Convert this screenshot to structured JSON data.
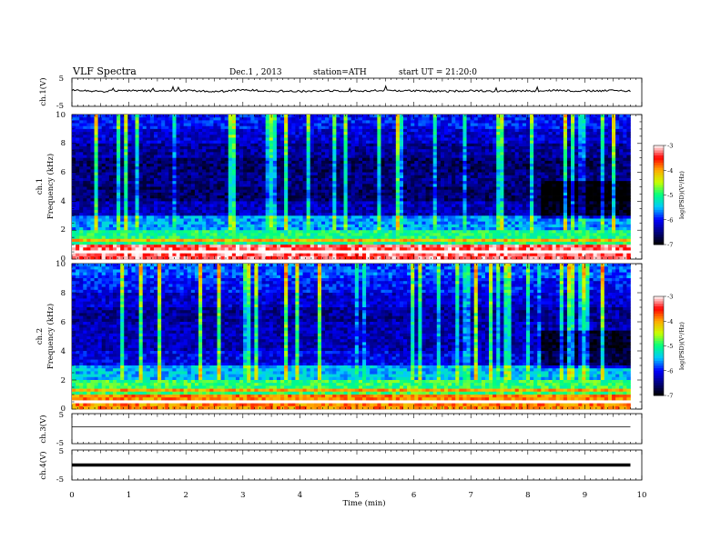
{
  "header": {
    "title": "VLF Spectra",
    "date": "Dec.1 , 2013",
    "station": "station=ATH",
    "start": "start UT = 21:20:0"
  },
  "colors": {
    "spectrogram_scale": [
      "#000000",
      "#000080",
      "#0000ff",
      "#00c8ff",
      "#00ff80",
      "#c8ff00",
      "#ffaa00",
      "#ff0000",
      "#ffffff"
    ]
  },
  "chart_data": [
    {
      "type": "line",
      "panel": "ch1-voltage",
      "ylabel": "ch.1(V)",
      "ylim": [
        -5,
        5
      ],
      "ytick_labels": [
        "5",
        "-5"
      ],
      "x": [
        0,
        0.5,
        1,
        1.5,
        2,
        2.5,
        3,
        3.5,
        4,
        4.5,
        5,
        5.5,
        6,
        6.5,
        7,
        7.5,
        8,
        8.5,
        9,
        9.5,
        9.8
      ],
      "values": [
        0.9,
        0.3,
        0.6,
        0.4,
        0.7,
        0.2,
        0.8,
        0.5,
        0.3,
        0.6,
        0.4,
        0.7,
        0.5,
        0.3,
        0.6,
        0.4,
        0.5,
        0.7,
        0.4,
        0.6,
        0.5
      ]
    },
    {
      "type": "heatmap",
      "panel": "ch1-spectrogram",
      "ylabel_channel": "ch.1",
      "ylabel": "Frequency (kHz)",
      "ylim": [
        0,
        10
      ],
      "ytick_labels": [
        "10",
        "8",
        "6",
        "4",
        "2",
        "0"
      ],
      "colorbar": {
        "label": "log(PSD)(V²/Hz)",
        "ticks": [
          "-3",
          "-4",
          "-5",
          "-6",
          "-7"
        ],
        "range": [
          -7,
          -3
        ]
      },
      "frequency_bands_khz": [
        0,
        1,
        2,
        3,
        4,
        5,
        6,
        7,
        8,
        9,
        10
      ],
      "band_mean_logpsd": [
        -3.3,
        -5.0,
        -5.6,
        -6.3,
        -6.6,
        -6.5,
        -6.6,
        -6.4,
        -6.2,
        -6.0
      ]
    },
    {
      "type": "heatmap",
      "panel": "ch2-spectrogram",
      "ylabel_channel": "ch.2",
      "ylabel": "Frequency (kHz)",
      "ylim": [
        0,
        10
      ],
      "ytick_labels": [
        "10",
        "8",
        "6",
        "4",
        "2",
        "0"
      ],
      "colorbar": {
        "label": "log(PSD)(V²/Hz)",
        "ticks": [
          "-3",
          "-4",
          "-5",
          "-6",
          "-7"
        ],
        "range": [
          -7,
          -3
        ]
      },
      "frequency_bands_khz": [
        0,
        1,
        2,
        3,
        4,
        5,
        6,
        7,
        8,
        9,
        10
      ],
      "band_mean_logpsd": [
        -4.0,
        -5.0,
        -5.6,
        -6.2,
        -6.4,
        -6.4,
        -6.5,
        -6.3,
        -6.1,
        -5.9
      ]
    },
    {
      "type": "line",
      "panel": "ch3-voltage",
      "ylabel": "ch.3(V)",
      "ylim": [
        -5,
        5
      ],
      "ytick_labels": [
        "5",
        "-5"
      ],
      "x": [
        0,
        9.8
      ],
      "values": [
        0,
        0
      ]
    },
    {
      "type": "line",
      "panel": "ch4-voltage",
      "ylabel": "ch.4(V)",
      "ylim": [
        -5,
        5
      ],
      "ytick_labels": [
        "5",
        "-5"
      ],
      "x": [
        0,
        9.8
      ],
      "values": [
        0,
        0
      ]
    }
  ],
  "xaxis": {
    "label": "Time (min)",
    "xlim": [
      0,
      10
    ],
    "tick_labels": [
      "0",
      "1",
      "2",
      "3",
      "4",
      "5",
      "6",
      "7",
      "8",
      "9",
      "10"
    ]
  }
}
